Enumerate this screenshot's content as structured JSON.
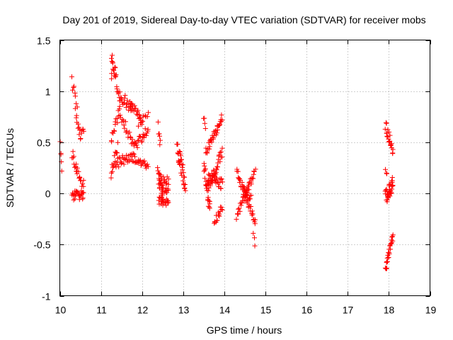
{
  "chart_data": {
    "type": "scatter",
    "title": "Day 201 of 2019, Sidereal Day-to-day VTEC variation (SDTVAR) for receiver mobs",
    "xlabel": "GPS time / hours",
    "ylabel": "SDTVAR / TECUs",
    "xlim": [
      10,
      19
    ],
    "ylim": [
      -1,
      1.5
    ],
    "xticks": [
      10,
      11,
      12,
      13,
      14,
      15,
      16,
      17,
      18,
      19
    ],
    "yticks": [
      1.5,
      1,
      0.5,
      0,
      -0.5,
      -1
    ],
    "ytick_labels": [
      "1.5",
      "1",
      "0.5",
      "0",
      "-0.5",
      "-1"
    ],
    "grid": true,
    "marker": "+",
    "color": "#ff0000",
    "segments": [
      {
        "t0": 10.0,
        "t1": 10.05,
        "y0": 0.6,
        "y1": 0.2,
        "noise": 0.08,
        "n": 6
      },
      {
        "t0": 10.3,
        "t1": 10.42,
        "y0": 1.1,
        "y1": 0.85,
        "noise": 0.06,
        "n": 8
      },
      {
        "t0": 10.38,
        "t1": 10.48,
        "y0": 0.8,
        "y1": 0.6,
        "noise": 0.05,
        "n": 8
      },
      {
        "t0": 10.48,
        "t1": 10.58,
        "y0": 0.55,
        "y1": 0.62,
        "noise": 0.04,
        "n": 8
      },
      {
        "t0": 10.3,
        "t1": 10.42,
        "y0": 0.38,
        "y1": 0.22,
        "noise": 0.05,
        "n": 10
      },
      {
        "t0": 10.42,
        "t1": 10.58,
        "y0": 0.22,
        "y1": 0.08,
        "noise": 0.05,
        "n": 12
      },
      {
        "t0": 10.3,
        "t1": 10.58,
        "y0": -0.02,
        "y1": -0.02,
        "noise": 0.045,
        "n": 28
      },
      {
        "t0": 11.25,
        "t1": 11.45,
        "y0": 1.35,
        "y1": 0.95,
        "noise": 0.05,
        "n": 18
      },
      {
        "t0": 11.25,
        "t1": 11.35,
        "y0": 1.15,
        "y1": 1.2,
        "noise": 0.05,
        "n": 6
      },
      {
        "t0": 11.45,
        "t1": 11.75,
        "y0": 0.95,
        "y1": 0.85,
        "noise": 0.06,
        "n": 22
      },
      {
        "t0": 11.7,
        "t1": 12.0,
        "y0": 0.88,
        "y1": 0.72,
        "noise": 0.05,
        "n": 20
      },
      {
        "t0": 11.25,
        "t1": 11.45,
        "y0": 0.55,
        "y1": 0.8,
        "noise": 0.06,
        "n": 14
      },
      {
        "t0": 11.45,
        "t1": 11.8,
        "y0": 0.8,
        "y1": 0.45,
        "noise": 0.05,
        "n": 20
      },
      {
        "t0": 11.8,
        "t1": 12.15,
        "y0": 0.45,
        "y1": 0.62,
        "noise": 0.05,
        "n": 22
      },
      {
        "t0": 11.9,
        "t1": 12.15,
        "y0": 0.7,
        "y1": 0.8,
        "noise": 0.05,
        "n": 10
      },
      {
        "t0": 11.25,
        "t1": 11.4,
        "y0": 0.2,
        "y1": 0.45,
        "noise": 0.08,
        "n": 14
      },
      {
        "t0": 11.35,
        "t1": 11.8,
        "y0": 0.3,
        "y1": 0.35,
        "noise": 0.05,
        "n": 30
      },
      {
        "t0": 11.8,
        "t1": 12.15,
        "y0": 0.35,
        "y1": 0.25,
        "noise": 0.04,
        "n": 22
      },
      {
        "t0": 12.4,
        "t1": 12.45,
        "y0": 0.65,
        "y1": 0.48,
        "noise": 0.05,
        "n": 6
      },
      {
        "t0": 12.38,
        "t1": 12.5,
        "y0": 0.22,
        "y1": -0.05,
        "noise": 0.06,
        "n": 12
      },
      {
        "t0": 12.4,
        "t1": 12.65,
        "y0": 0.1,
        "y1": 0.1,
        "noise": 0.1,
        "n": 34
      },
      {
        "t0": 12.4,
        "t1": 12.65,
        "y0": -0.07,
        "y1": -0.1,
        "noise": 0.04,
        "n": 20
      },
      {
        "t0": 12.85,
        "t1": 13.05,
        "y0": 0.45,
        "y1": 0.1,
        "noise": 0.09,
        "n": 34
      },
      {
        "t0": 13.5,
        "t1": 13.55,
        "y0": 0.73,
        "y1": 0.65,
        "noise": 0.04,
        "n": 4
      },
      {
        "t0": 13.5,
        "t1": 13.65,
        "y0": 0.28,
        "y1": -0.15,
        "noise": 0.08,
        "n": 22
      },
      {
        "t0": 13.55,
        "t1": 13.95,
        "y0": 0.4,
        "y1": 0.75,
        "noise": 0.04,
        "n": 36
      },
      {
        "t0": 13.6,
        "t1": 13.95,
        "y0": 0.05,
        "y1": 0.4,
        "noise": 0.05,
        "n": 32
      },
      {
        "t0": 13.6,
        "t1": 13.95,
        "y0": 0.15,
        "y1": 0.1,
        "noise": 0.06,
        "n": 32
      },
      {
        "t0": 13.75,
        "t1": 13.95,
        "y0": -0.3,
        "y1": -0.12,
        "noise": 0.05,
        "n": 16
      },
      {
        "t0": 14.3,
        "t1": 14.75,
        "y0": 0.22,
        "y1": -0.28,
        "noise": 0.04,
        "n": 40
      },
      {
        "t0": 14.3,
        "t1": 14.75,
        "y0": -0.22,
        "y1": 0.22,
        "noise": 0.04,
        "n": 36
      },
      {
        "t0": 14.45,
        "t1": 14.65,
        "y0": 0.05,
        "y1": -0.05,
        "noise": 0.04,
        "n": 14
      },
      {
        "t0": 14.7,
        "t1": 14.75,
        "y0": -0.37,
        "y1": -0.53,
        "noise": 0.02,
        "n": 3
      },
      {
        "t0": 17.92,
        "t1": 18.1,
        "y0": 0.66,
        "y1": 0.42,
        "noise": 0.05,
        "n": 22
      },
      {
        "t0": 17.92,
        "t1": 17.96,
        "y0": 0.22,
        "y1": 0.2,
        "noise": 0.02,
        "n": 3
      },
      {
        "t0": 17.92,
        "t1": 18.1,
        "y0": -0.04,
        "y1": 0.1,
        "noise": 0.07,
        "n": 36
      },
      {
        "t0": 17.92,
        "t1": 18.1,
        "y0": -0.73,
        "y1": -0.43,
        "noise": 0.04,
        "n": 26
      }
    ]
  }
}
